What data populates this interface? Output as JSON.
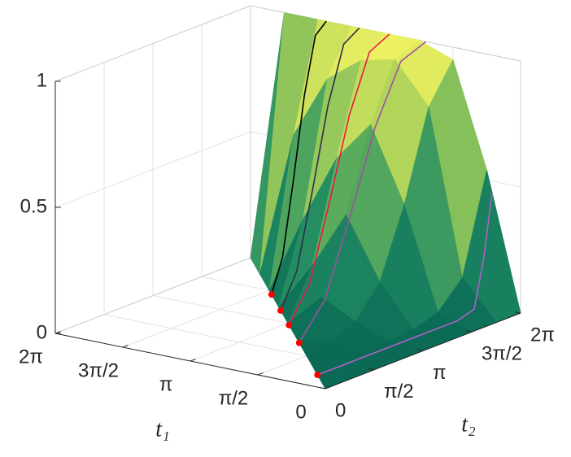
{
  "chart_data": {
    "type": "surface",
    "xlabel": "t₁",
    "ylabel": "t₂",
    "x": [
      0,
      0.7854,
      1.5708,
      2.3562,
      3.1416,
      3.927,
      4.7124,
      5.4978,
      6.2832
    ],
    "y": [
      0,
      0.7854,
      1.5708,
      2.3562,
      3.1416,
      3.927,
      4.7124,
      5.4978,
      6.2832
    ],
    "z": [
      [
        0,
        0,
        0,
        0,
        0,
        0,
        0,
        0,
        0
      ],
      [
        null,
        0,
        0,
        0,
        0.01,
        0.02,
        0.05,
        0.15,
        0.54
      ],
      [
        null,
        null,
        0,
        0.02,
        0.06,
        0.18,
        0.45,
        0.8,
        0.95
      ],
      [
        null,
        null,
        null,
        0,
        0.13,
        0.42,
        0.74,
        0.96,
        1
      ],
      [
        null,
        null,
        null,
        null,
        0,
        0.19,
        0.58,
        0.93,
        1
      ],
      [
        null,
        null,
        null,
        null,
        null,
        0,
        0.31,
        0.83,
        1
      ],
      [
        null,
        null,
        null,
        null,
        null,
        null,
        0,
        0.58,
        1
      ],
      [
        null,
        null,
        null,
        null,
        null,
        null,
        null,
        0,
        1
      ],
      [
        null,
        null,
        null,
        null,
        null,
        null,
        null,
        null,
        0
      ]
    ],
    "colormap": [
      "#0a6a55",
      "#1f8a63",
      "#5fae5c",
      "#b5d65a",
      "#f3f463"
    ],
    "xlim": [
      0,
      6.2832
    ],
    "ylim": [
      0,
      6.2832
    ],
    "zlim": [
      0,
      1
    ],
    "xticks": [
      0,
      {
        "value": 1.5708,
        "label": "π/2"
      },
      {
        "value": 3.1416,
        "label": "π"
      },
      {
        "value": 4.7124,
        "label": "3π/2"
      },
      {
        "value": 6.2832,
        "label": "2π"
      }
    ],
    "yticks": [
      0,
      {
        "value": 1.5708,
        "label": "π/2"
      },
      {
        "value": 3.1416,
        "label": "π"
      },
      {
        "value": 4.7124,
        "label": "3π/2"
      },
      {
        "value": 6.2832,
        "label": "2π"
      }
    ],
    "zticks": [
      0,
      0.5,
      1
    ],
    "grid": true,
    "marker_color": "#ff0000",
    "curves": [
      {
        "t1": 4.52,
        "color": "#000000",
        "t2": [
          4.52,
          4.873,
          5.225,
          5.578,
          5.931,
          6.283
        ],
        "z": [
          0,
          0.13,
          0.42,
          0.74,
          0.96,
          1
        ]
      },
      {
        "t1": 3.75,
        "color": "#2e2e48",
        "t2": [
          3.75,
          4.26,
          4.76,
          5.27,
          5.78,
          6.28
        ],
        "z": [
          0,
          0.13,
          0.42,
          0.74,
          0.96,
          1
        ]
      },
      {
        "t1": 3.05,
        "color": "#e8174a",
        "t2": [
          3.05,
          3.7,
          4.34,
          4.99,
          5.64,
          6.28
        ],
        "z": [
          0,
          0.13,
          0.42,
          0.74,
          0.96,
          1
        ]
      },
      {
        "t1": 2.2,
        "color": "#a0509e",
        "t2": [
          2.2,
          3.02,
          3.83,
          4.65,
          5.47,
          6.28
        ],
        "z": [
          0,
          0.13,
          0.42,
          0.74,
          0.96,
          1
        ]
      },
      {
        "t1": 0.66,
        "color": "#b060c8",
        "t2": [
          0.66,
          1.78,
          2.91,
          4.03,
          5.16,
          5.7,
          6.0,
          6.28
        ],
        "z": [
          0,
          0,
          0,
          0,
          0,
          0.02,
          0.2,
          0.45
        ]
      }
    ]
  }
}
